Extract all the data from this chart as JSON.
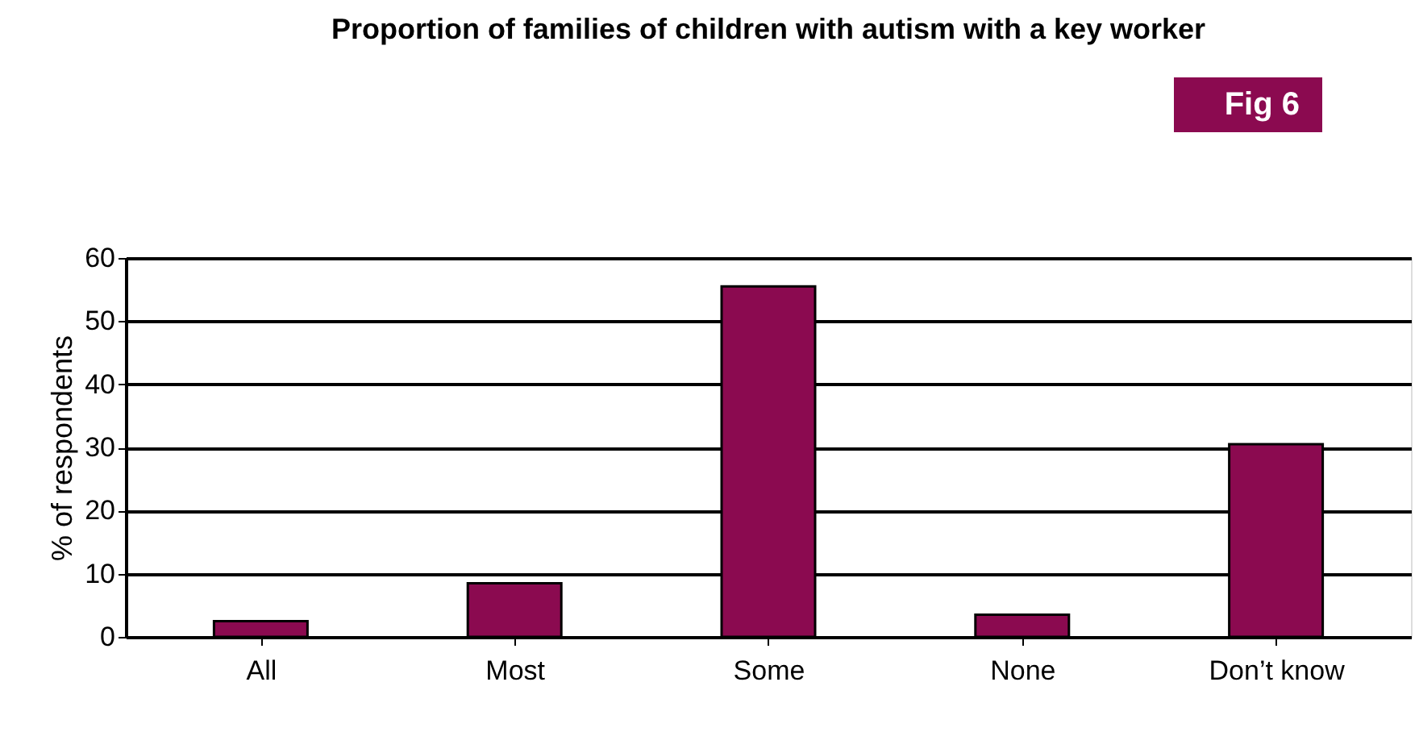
{
  "chart_data": {
    "type": "bar",
    "title": "Proportion of families of children with autism with a key worker",
    "ylabel": "% of respondents",
    "annotations": [
      "Fig 6"
    ],
    "categories": [
      "All",
      "Most",
      "Some",
      "None",
      "Don’t know"
    ],
    "values": [
      2.5,
      8.5,
      55.5,
      3.5,
      30.5
    ],
    "color": "#8b0a50",
    "ylim": [
      0,
      60
    ],
    "yticks": [
      0,
      10,
      20,
      30,
      40,
      50,
      60
    ],
    "grid": "y"
  }
}
